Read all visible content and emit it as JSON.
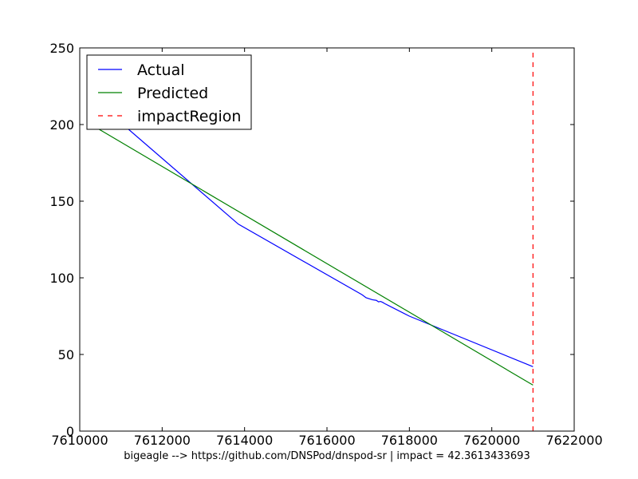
{
  "chart_data": {
    "type": "line",
    "title": "",
    "xlabel": "bigeagle --> https://github.com/DNSPod/dnspod-sr | impact = 42.3613433693",
    "ylabel": "",
    "xlim": [
      7610000,
      7622000
    ],
    "ylim": [
      0,
      250
    ],
    "xticks": [
      7610000,
      7612000,
      7614000,
      7616000,
      7618000,
      7620000,
      7622000
    ],
    "yticks": [
      0,
      50,
      100,
      150,
      200,
      250
    ],
    "xtick_labels": [
      "7610000",
      "7612000",
      "7614000",
      "7616000",
      "7618000",
      "7620000",
      "7622000"
    ],
    "ytick_labels": [
      "0",
      "50",
      "100",
      "150",
      "200",
      "250"
    ],
    "grid": false,
    "legend_position": "upper-left",
    "series": [
      {
        "name": "Actual",
        "color": "#0000ff",
        "style": "solid",
        "x": [
          7610400,
          7611050,
          7613850,
          7616850,
          7616950,
          7617100,
          7617200,
          7617250,
          7617300,
          7617350,
          7617400,
          7618000,
          7621000
        ],
        "y": [
          210,
          200,
          135,
          89,
          87,
          85.7,
          85.3,
          84.3,
          84.6,
          84.0,
          83.2,
          75,
          42
        ]
      },
      {
        "name": "Predicted",
        "color": "#008000",
        "style": "solid",
        "x": [
          7610400,
          7621000
        ],
        "y": [
          198,
          30
        ]
      },
      {
        "name": "impactRegion",
        "color": "#ff0000",
        "style": "dashed",
        "x": [
          7621000,
          7621000
        ],
        "y": [
          0,
          250
        ]
      }
    ]
  }
}
